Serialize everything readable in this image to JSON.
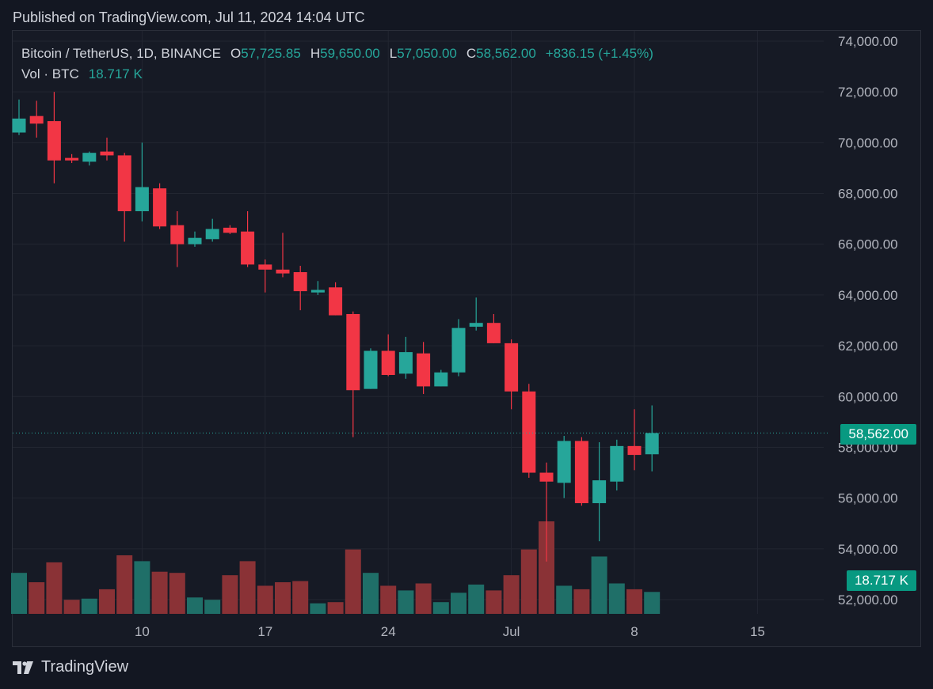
{
  "published": "Published on TradingView.com, Jul 11, 2024 14:04 UTC",
  "legend": {
    "symbol": "Bitcoin / TetherUS, 1D, BINANCE",
    "o_label": "O",
    "o_value": "57,725.85",
    "h_label": "H",
    "h_value": "59,650.00",
    "l_label": "L",
    "l_value": "57,050.00",
    "c_label": "C",
    "c_value": "58,562.00",
    "change": "+836.15 (+1.45%)",
    "vol_label": "Vol · BTC",
    "vol_value": "18.717 K"
  },
  "price_tag": "58,562.00",
  "volume_tag": "18.717 K",
  "brand": "TradingView",
  "colors": {
    "up": "#26a69a",
    "down": "#f23645",
    "up_volume": "#1f6f68",
    "down_volume": "#8a3236",
    "price_tag_bg": "#089981",
    "grid": "#222631",
    "background": "#131722"
  },
  "chart_data": {
    "type": "candlestick",
    "symbol": "Bitcoin / TetherUS",
    "interval": "1D",
    "exchange": "BINANCE",
    "price_axis": {
      "ylim": [
        51500,
        74800
      ],
      "ticks": [
        "74,000.00",
        "72,000.00",
        "70,000.00",
        "68,000.00",
        "66,000.00",
        "64,000.00",
        "62,000.00",
        "60,000.00",
        "58,000.00",
        "56,000.00",
        "54,000.00",
        "52,000.00"
      ],
      "tick_values": [
        74000,
        72000,
        70000,
        68000,
        66000,
        64000,
        62000,
        60000,
        58000,
        56000,
        54000,
        52000
      ]
    },
    "time_axis": {
      "labels": [
        "10",
        "17",
        "24",
        "Jul",
        "8",
        "15"
      ],
      "label_dates": [
        "2024-06-10",
        "2024-06-17",
        "2024-06-24",
        "2024-07-01",
        "2024-07-08",
        "2024-07-15"
      ]
    },
    "grid": true,
    "current_price": 58562,
    "volume_max": 100,
    "volume_unit": "relative",
    "candles": [
      {
        "date": "2024-06-03",
        "o": 70400,
        "h": 71700,
        "l": 70300,
        "c": 70950,
        "v": 35
      },
      {
        "date": "2024-06-04",
        "o": 71050,
        "h": 71650,
        "l": 70200,
        "c": 70750,
        "v": 27
      },
      {
        "date": "2024-06-05",
        "o": 70850,
        "h": 72000,
        "l": 68400,
        "c": 69300,
        "v": 44
      },
      {
        "date": "2024-06-06",
        "o": 69400,
        "h": 69550,
        "l": 69200,
        "c": 69300,
        "v": 12
      },
      {
        "date": "2024-06-07",
        "o": 69250,
        "h": 69650,
        "l": 69100,
        "c": 69600,
        "v": 13
      },
      {
        "date": "2024-06-08",
        "o": 69650,
        "h": 70200,
        "l": 69300,
        "c": 69500,
        "v": 21
      },
      {
        "date": "2024-06-09",
        "o": 69500,
        "h": 69600,
        "l": 66100,
        "c": 67300,
        "v": 50
      },
      {
        "date": "2024-06-10",
        "o": 67300,
        "h": 70000,
        "l": 66900,
        "c": 68250,
        "v": 45
      },
      {
        "date": "2024-06-11",
        "o": 68200,
        "h": 68400,
        "l": 66600,
        "c": 66700,
        "v": 36
      },
      {
        "date": "2024-06-12",
        "o": 66750,
        "h": 67300,
        "l": 65100,
        "c": 66000,
        "v": 35
      },
      {
        "date": "2024-06-13",
        "o": 66000,
        "h": 66500,
        "l": 65900,
        "c": 66250,
        "v": 14
      },
      {
        "date": "2024-06-14",
        "o": 66200,
        "h": 67000,
        "l": 66100,
        "c": 66600,
        "v": 12
      },
      {
        "date": "2024-06-15",
        "o": 66650,
        "h": 66750,
        "l": 66400,
        "c": 66450,
        "v": 33
      },
      {
        "date": "2024-06-16",
        "o": 66500,
        "h": 67300,
        "l": 65100,
        "c": 65200,
        "v": 45
      },
      {
        "date": "2024-06-17",
        "o": 65200,
        "h": 65400,
        "l": 64100,
        "c": 65000,
        "v": 24
      },
      {
        "date": "2024-06-18",
        "o": 65000,
        "h": 66450,
        "l": 64700,
        "c": 64850,
        "v": 27
      },
      {
        "date": "2024-06-19",
        "o": 64900,
        "h": 65150,
        "l": 63400,
        "c": 64150,
        "v": 28
      },
      {
        "date": "2024-06-20",
        "o": 64100,
        "h": 64550,
        "l": 64000,
        "c": 64200,
        "v": 9
      },
      {
        "date": "2024-06-21",
        "o": 64300,
        "h": 64500,
        "l": 63200,
        "c": 63200,
        "v": 10
      },
      {
        "date": "2024-06-22",
        "o": 63250,
        "h": 63350,
        "l": 58400,
        "c": 60250,
        "v": 55
      },
      {
        "date": "2024-06-23",
        "o": 60300,
        "h": 61900,
        "l": 60300,
        "c": 61800,
        "v": 35
      },
      {
        "date": "2024-06-24",
        "o": 61800,
        "h": 62450,
        "l": 60800,
        "c": 60850,
        "v": 24
      },
      {
        "date": "2024-06-25",
        "o": 60900,
        "h": 62350,
        "l": 60700,
        "c": 61750,
        "v": 20
      },
      {
        "date": "2024-06-26",
        "o": 61700,
        "h": 62150,
        "l": 60100,
        "c": 60400,
        "v": 26
      },
      {
        "date": "2024-06-27",
        "o": 60400,
        "h": 61050,
        "l": 60400,
        "c": 60950,
        "v": 10
      },
      {
        "date": "2024-06-28",
        "o": 60950,
        "h": 63050,
        "l": 60800,
        "c": 62700,
        "v": 18
      },
      {
        "date": "2024-06-29",
        "o": 62750,
        "h": 63900,
        "l": 62600,
        "c": 62900,
        "v": 25
      },
      {
        "date": "2024-06-30",
        "o": 62900,
        "h": 63250,
        "l": 62100,
        "c": 62100,
        "v": 20
      },
      {
        "date": "2024-07-01",
        "o": 62100,
        "h": 62250,
        "l": 59500,
        "c": 60200,
        "v": 33
      },
      {
        "date": "2024-07-02",
        "o": 60200,
        "h": 60500,
        "l": 56800,
        "c": 57000,
        "v": 55
      },
      {
        "date": "2024-07-03",
        "o": 57000,
        "h": 57400,
        "l": 53500,
        "c": 56650,
        "v": 79
      },
      {
        "date": "2024-07-04",
        "o": 56600,
        "h": 58450,
        "l": 56000,
        "c": 58250,
        "v": 24
      },
      {
        "date": "2024-07-05",
        "o": 58250,
        "h": 58400,
        "l": 55700,
        "c": 55800,
        "v": 21
      },
      {
        "date": "2024-07-06",
        "o": 55800,
        "h": 58200,
        "l": 54300,
        "c": 56700,
        "v": 49
      },
      {
        "date": "2024-07-07",
        "o": 56650,
        "h": 58300,
        "l": 56300,
        "c": 58050,
        "v": 26
      },
      {
        "date": "2024-07-08",
        "o": 58050,
        "h": 59500,
        "l": 57100,
        "c": 57700,
        "v": 21
      },
      {
        "date": "2024-07-09",
        "o": 57725.85,
        "h": 59650,
        "l": 57050,
        "c": 58562,
        "v": 18.717
      }
    ]
  }
}
